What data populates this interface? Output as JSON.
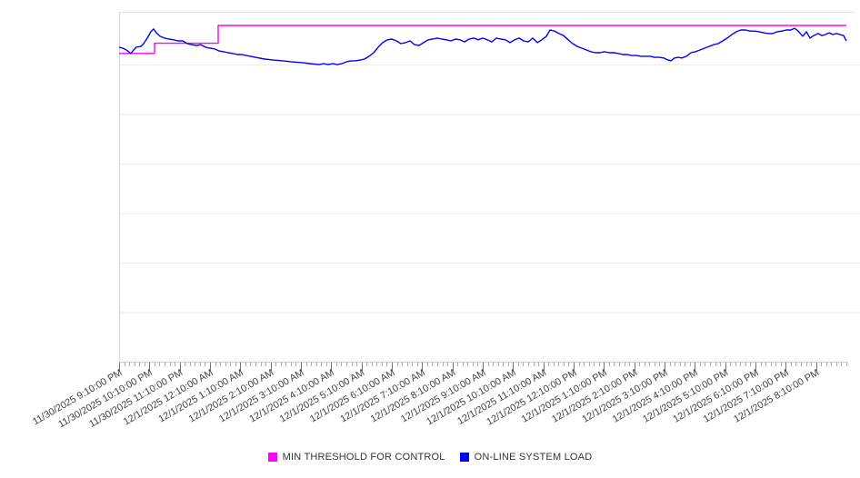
{
  "page": {
    "background": "#ffffff"
  },
  "legend": {
    "items": [
      {
        "id": "min-threshold",
        "label": "MIN THRESHOLD FOR CONTROL",
        "color": "#ff00ff"
      },
      {
        "id": "system-load",
        "label": "ON-LINE SYSTEM LOAD",
        "color": "#0000ff"
      }
    ]
  },
  "chart_data": {
    "type": "line",
    "title": "",
    "xlabel": "",
    "ylabel": "",
    "legend_position": "bottom-center",
    "grid": "horizontal",
    "x_axis": {
      "range_hours": [
        0,
        24
      ],
      "major_tick_interval_minutes": 60,
      "minor_tick_interval_minutes": 10,
      "tick_labels": [
        "11/30/2025 9:10:00 PM",
        "11/30/2025 10:10:00 PM",
        "11/30/2025 11:10:00 PM",
        "12/1/2025 12:10:00 AM",
        "12/1/2025 1:10:00 AM",
        "12/1/2025 2:10:00 AM",
        "12/1/2025 3:10:00 AM",
        "12/1/2025 4:10:00 AM",
        "12/1/2025 5:10:00 AM",
        "12/1/2025 6:10:00 AM",
        "12/1/2025 7:10:00 AM",
        "12/1/2025 8:10:00 AM",
        "12/1/2025 9:10:00 AM",
        "12/1/2025 10:10:00 AM",
        "12/1/2025 11:10:00 AM",
        "12/1/2025 12:10:00 PM",
        "12/1/2025 1:10:00 PM",
        "12/1/2025 2:10:00 PM",
        "12/1/2025 3:10:00 PM",
        "12/1/2025 4:10:00 PM",
        "12/1/2025 5:10:00 PM",
        "12/1/2025 6:10:00 PM",
        "12/1/2025 7:10:00 PM",
        "12/1/2025 8:10:00 PM"
      ]
    },
    "y_axis": {
      "tick_labels_visible": false,
      "horizontal_divisions": 7,
      "value_unit": "percent_of_plot_height_0_to_100",
      "range": [
        0,
        100
      ]
    },
    "series": [
      {
        "id": "min-threshold",
        "name": "MIN THRESHOLD FOR CONTROL",
        "color": "#ff00ff",
        "style": "step",
        "points": [
          [
            0,
            88.1
          ],
          [
            1.17,
            88.1
          ],
          [
            1.17,
            91.0
          ],
          [
            3.27,
            91.0
          ],
          [
            3.27,
            96.1
          ],
          [
            24,
            96.1
          ]
        ]
      },
      {
        "id": "system-load",
        "name": "ON-LINE SYSTEM LOAD",
        "color": "#0000ff",
        "style": "line",
        "points": [
          [
            0,
            89.9
          ],
          [
            0.12,
            89.6
          ],
          [
            0.24,
            89.1
          ],
          [
            0.39,
            88.1
          ],
          [
            0.48,
            89.1
          ],
          [
            0.57,
            89.9
          ],
          [
            0.72,
            90.1
          ],
          [
            0.81,
            90.9
          ],
          [
            0.93,
            92.5
          ],
          [
            1.05,
            94.3
          ],
          [
            1.14,
            95.1
          ],
          [
            1.23,
            94.0
          ],
          [
            1.35,
            93.0
          ],
          [
            1.5,
            92.5
          ],
          [
            1.65,
            92.2
          ],
          [
            1.8,
            92.0
          ],
          [
            1.95,
            91.7
          ],
          [
            2.1,
            91.7
          ],
          [
            2.25,
            90.9
          ],
          [
            2.4,
            90.6
          ],
          [
            2.55,
            90.4
          ],
          [
            2.7,
            90.6
          ],
          [
            2.85,
            89.9
          ],
          [
            3.0,
            89.6
          ],
          [
            3.15,
            89.4
          ],
          [
            3.3,
            88.8
          ],
          [
            3.45,
            88.6
          ],
          [
            3.6,
            88.3
          ],
          [
            3.75,
            88.1
          ],
          [
            3.9,
            87.8
          ],
          [
            4.05,
            87.8
          ],
          [
            4.2,
            87.5
          ],
          [
            4.5,
            87.0
          ],
          [
            4.8,
            86.5
          ],
          [
            5.1,
            86.2
          ],
          [
            5.4,
            86.0
          ],
          [
            5.7,
            85.7
          ],
          [
            6.0,
            85.5
          ],
          [
            6.3,
            85.2
          ],
          [
            6.6,
            84.9
          ],
          [
            6.75,
            85.2
          ],
          [
            6.9,
            84.9
          ],
          [
            7.05,
            85.2
          ],
          [
            7.2,
            84.9
          ],
          [
            7.35,
            85.2
          ],
          [
            7.5,
            85.7
          ],
          [
            7.65,
            86.0
          ],
          [
            7.8,
            86.0
          ],
          [
            7.95,
            86.2
          ],
          [
            8.1,
            86.5
          ],
          [
            8.25,
            87.3
          ],
          [
            8.4,
            88.3
          ],
          [
            8.55,
            89.9
          ],
          [
            8.7,
            91.2
          ],
          [
            8.85,
            92.0
          ],
          [
            9.0,
            92.2
          ],
          [
            9.15,
            91.7
          ],
          [
            9.3,
            90.9
          ],
          [
            9.45,
            91.2
          ],
          [
            9.6,
            91.7
          ],
          [
            9.75,
            90.6
          ],
          [
            9.9,
            90.4
          ],
          [
            10.05,
            91.2
          ],
          [
            10.2,
            92.0
          ],
          [
            10.35,
            92.2
          ],
          [
            10.5,
            92.5
          ],
          [
            10.65,
            92.2
          ],
          [
            10.8,
            92.0
          ],
          [
            10.95,
            91.7
          ],
          [
            11.1,
            92.2
          ],
          [
            11.25,
            92.0
          ],
          [
            11.4,
            91.4
          ],
          [
            11.55,
            92.2
          ],
          [
            11.7,
            92.5
          ],
          [
            11.85,
            92.0
          ],
          [
            12.0,
            92.5
          ],
          [
            12.15,
            92.0
          ],
          [
            12.3,
            91.4
          ],
          [
            12.45,
            92.5
          ],
          [
            12.6,
            92.2
          ],
          [
            12.75,
            92.0
          ],
          [
            12.9,
            91.2
          ],
          [
            13.05,
            92.0
          ],
          [
            13.2,
            92.5
          ],
          [
            13.35,
            91.7
          ],
          [
            13.5,
            91.4
          ],
          [
            13.65,
            92.5
          ],
          [
            13.8,
            91.2
          ],
          [
            13.95,
            92.0
          ],
          [
            14.1,
            93.0
          ],
          [
            14.22,
            94.8
          ],
          [
            14.37,
            94.5
          ],
          [
            14.52,
            93.8
          ],
          [
            14.67,
            93.2
          ],
          [
            14.82,
            92.0
          ],
          [
            14.97,
            90.9
          ],
          [
            15.12,
            90.1
          ],
          [
            15.27,
            89.6
          ],
          [
            15.42,
            89.1
          ],
          [
            15.57,
            88.6
          ],
          [
            15.72,
            88.3
          ],
          [
            15.87,
            88.3
          ],
          [
            16.02,
            88.6
          ],
          [
            16.17,
            88.3
          ],
          [
            16.32,
            88.3
          ],
          [
            16.47,
            88.1
          ],
          [
            16.62,
            87.8
          ],
          [
            16.77,
            87.8
          ],
          [
            16.92,
            87.5
          ],
          [
            17.07,
            87.5
          ],
          [
            17.22,
            87.3
          ],
          [
            17.37,
            87.3
          ],
          [
            17.52,
            87.3
          ],
          [
            17.67,
            87.0
          ],
          [
            17.82,
            87.0
          ],
          [
            17.97,
            86.8
          ],
          [
            18.12,
            86.2
          ],
          [
            18.21,
            86.0
          ],
          [
            18.33,
            86.8
          ],
          [
            18.45,
            87.0
          ],
          [
            18.57,
            86.8
          ],
          [
            18.72,
            87.3
          ],
          [
            18.87,
            88.3
          ],
          [
            19.02,
            88.6
          ],
          [
            19.17,
            89.1
          ],
          [
            19.32,
            89.6
          ],
          [
            19.47,
            90.1
          ],
          [
            19.62,
            90.6
          ],
          [
            19.77,
            90.9
          ],
          [
            19.92,
            91.7
          ],
          [
            20.07,
            92.5
          ],
          [
            20.22,
            93.5
          ],
          [
            20.37,
            94.3
          ],
          [
            20.52,
            94.8
          ],
          [
            20.67,
            94.8
          ],
          [
            20.82,
            94.5
          ],
          [
            20.97,
            94.5
          ],
          [
            21.12,
            94.3
          ],
          [
            21.27,
            94.0
          ],
          [
            21.42,
            93.8
          ],
          [
            21.57,
            93.8
          ],
          [
            21.72,
            94.3
          ],
          [
            21.87,
            94.5
          ],
          [
            22.02,
            94.8
          ],
          [
            22.17,
            94.8
          ],
          [
            22.29,
            95.3
          ],
          [
            22.41,
            94.5
          ],
          [
            22.56,
            93.0
          ],
          [
            22.68,
            94.3
          ],
          [
            22.8,
            92.5
          ],
          [
            22.92,
            93.2
          ],
          [
            23.07,
            93.8
          ],
          [
            23.19,
            93.2
          ],
          [
            23.31,
            93.5
          ],
          [
            23.43,
            94.0
          ],
          [
            23.55,
            93.5
          ],
          [
            23.67,
            93.8
          ],
          [
            23.79,
            93.5
          ],
          [
            23.91,
            93.2
          ],
          [
            24.0,
            91.7
          ]
        ]
      }
    ]
  }
}
